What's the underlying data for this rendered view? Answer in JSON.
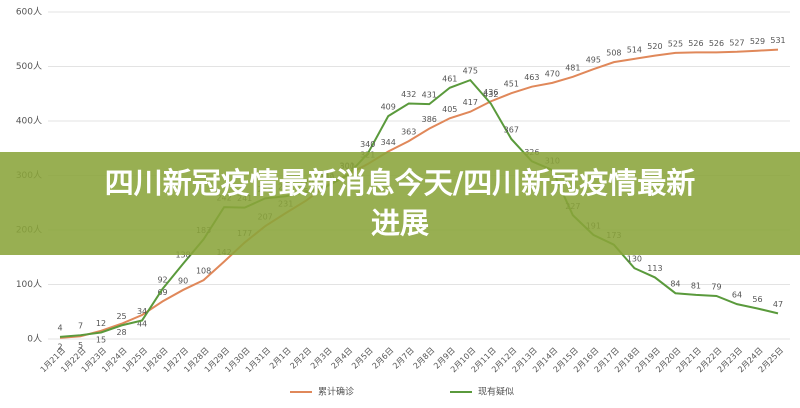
{
  "chart_data": {
    "type": "line",
    "title": "四川新冠疫情最新消息今天/四川新冠疫情最新进展",
    "categories": [
      "1月21日",
      "1月22日",
      "1月23日",
      "1月24日",
      "1月25日",
      "1月26日",
      "1月27日",
      "1月28日",
      "1月29日",
      "1月30日",
      "1月31日",
      "2月1日",
      "2月2日",
      "2月3日",
      "2月4日",
      "2月5日",
      "2月6日",
      "2月7日",
      "2月8日",
      "2月9日",
      "2月10日",
      "2月11日",
      "2月12日",
      "2月13日",
      "2月14日",
      "2月15日",
      "2月16日",
      "2月17日",
      "2月18日",
      "2月19日",
      "2月20日",
      "2月21日",
      "2月22日",
      "2月23日",
      "2月24日",
      "2月25日"
    ],
    "series": [
      {
        "name": "累计确诊",
        "color": "#e0885a",
        "values": [
          2,
          5,
          15,
          28,
          44,
          69,
          90,
          108,
          142,
          177,
          207,
          231,
          254,
          282,
          301,
          321,
          344,
          363,
          386,
          405,
          417,
          436,
          451,
          463,
          470,
          481,
          495,
          508,
          514,
          520,
          525,
          526,
          526,
          527,
          529,
          531
        ]
      },
      {
        "name": "现有疑似",
        "color": "#5a9a3c",
        "values": [
          4,
          7,
          12,
          25,
          34,
          92,
          138,
          183,
          242,
          241,
          258,
          262,
          270,
          280,
          300,
          340,
          409,
          432,
          431,
          461,
          475,
          432,
          367,
          326,
          310,
          227,
          191,
          173,
          130,
          113,
          84,
          81,
          79,
          64,
          56,
          47
        ]
      }
    ],
    "ylim": [
      0,
      600
    ],
    "yticks": [
      {
        "value": 0,
        "label": "0人"
      },
      {
        "value": 100,
        "label": "100人"
      },
      {
        "value": 200,
        "label": "200人"
      },
      {
        "value": 300,
        "label": "300人"
      },
      {
        "value": 400,
        "label": "400人"
      },
      {
        "value": 500,
        "label": "500人"
      },
      {
        "value": 600,
        "label": "600人"
      }
    ],
    "grid": true
  }
}
